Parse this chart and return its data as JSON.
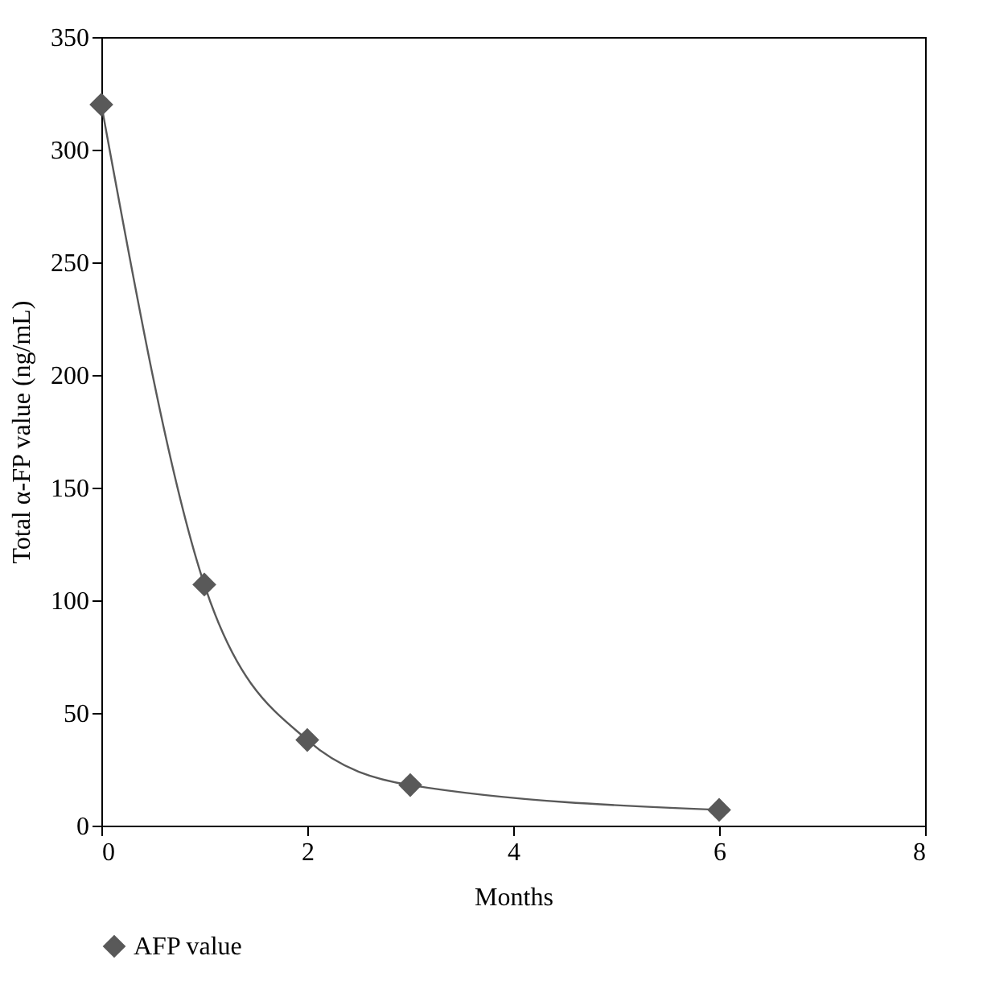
{
  "chart_data": {
    "type": "line",
    "xlabel": "Months",
    "ylabel": "Total α-FP value (ng/mL)",
    "x": [
      0,
      1,
      2,
      3,
      6
    ],
    "series": [
      {
        "name": "AFP value",
        "color": "#595959",
        "values": [
          320,
          107,
          38,
          18,
          7
        ]
      }
    ],
    "xlim": [
      0,
      8
    ],
    "xticks": [
      0,
      2,
      4,
      6,
      8
    ],
    "ylim": [
      0,
      350
    ],
    "yticks": [
      0,
      50,
      100,
      150,
      200,
      250,
      300,
      350
    ],
    "marker": "diamond",
    "line_style": "solid",
    "grid": false,
    "legend": "bottom"
  }
}
